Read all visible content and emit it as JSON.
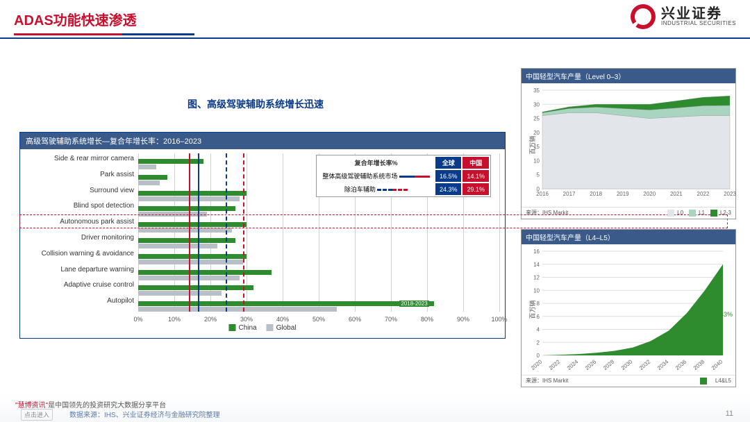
{
  "header": {
    "title": "ADAS功能快速渗透"
  },
  "logo": {
    "cn": "兴业证券",
    "en": "INDUSTRIAL SECURITIES"
  },
  "subtitle": "图、高级驾驶辅助系统增长迅速",
  "main_chart": {
    "title": "高级驾驶辅助系统增长—复合年增长率：2016–2023",
    "type": "horizontal_grouped_bar",
    "categories": [
      "Side & rear mirror camera",
      "Park assist",
      "Surround view",
      "Blind spot detection",
      "Autonomous park assist",
      "Driver monitoring",
      "Collision warning & avoidance",
      "Lane departure warning",
      "Adaptive cruise control",
      "Autopilot"
    ],
    "china_values": [
      18,
      8,
      30,
      27,
      30,
      27,
      30,
      37,
      32,
      82
    ],
    "global_values": [
      5,
      6,
      28,
      19,
      26,
      22,
      29,
      28,
      23,
      55
    ],
    "colors": {
      "china": "#2e8b2e",
      "global": "#b8bfc6"
    },
    "xlim": [
      0,
      100
    ],
    "xtick_step": 10,
    "grid_color": "#d0d0d0",
    "ref_lines": [
      {
        "x": 16.5,
        "color": "#0a3a8a",
        "style": "solid"
      },
      {
        "x": 14.1,
        "color": "#c8102e",
        "style": "solid"
      },
      {
        "x": 24.3,
        "color": "#0a3a8a",
        "style": "dashed"
      },
      {
        "x": 29.1,
        "color": "#c8102e",
        "style": "dashed"
      }
    ],
    "autopilot_label": "2018-2023",
    "legend": {
      "china": "China",
      "global": "Global"
    },
    "highlight_row_index": 4
  },
  "cagr_table": {
    "header": "复合年增长率%",
    "col_global": "全球",
    "col_china": "中国",
    "rows": [
      {
        "label": "整体高级驾驶辅助系统市场",
        "swatch": "solid",
        "global": "16.5%",
        "china": "14.1%"
      },
      {
        "label": "除泊车辅助",
        "swatch": "dashed",
        "global": "24.3%",
        "china": "29.1%"
      }
    ]
  },
  "area_chart": {
    "title": "中国轻型汽车产量（Level 0–3）",
    "type": "stacked_area",
    "ylabel": "百万辆",
    "ylim": [
      0,
      35
    ],
    "ytick_step": 5,
    "x": [
      2016,
      2017,
      2018,
      2019,
      2020,
      2021,
      2022,
      2023
    ],
    "series": [
      {
        "name": "L0",
        "color": "#e2e6ea",
        "values": [
          26,
          27,
          27,
          26,
          25,
          25.5,
          26,
          26
        ]
      },
      {
        "name": "L1",
        "color": "#a8d4c0",
        "values": [
          1,
          1.5,
          2,
          2.5,
          3,
          3.2,
          3.5,
          3.6
        ]
      },
      {
        "name": "L2-3",
        "color": "#2e8b2e",
        "values": [
          0.3,
          0.6,
          1,
          1.5,
          2,
          2.5,
          3,
          3.4
        ]
      }
    ],
    "source": "来源：IHS Markit"
  },
  "growth_chart": {
    "title": "中国轻型汽车产量（L4–L5）",
    "type": "area",
    "ylabel": "百万辆",
    "ylim": [
      0,
      16
    ],
    "ytick_step": 2,
    "x": [
      2020,
      2022,
      2024,
      2026,
      2028,
      2030,
      2032,
      2034,
      2036,
      2038,
      2040
    ],
    "values": [
      0,
      0.1,
      0.2,
      0.4,
      0.7,
      1.2,
      2.2,
      3.8,
      6.5,
      10,
      14
    ],
    "color": "#2e8b2e",
    "annotation": "全球~43%",
    "legend": "L4&L5",
    "source": "来源：IHS Markit"
  },
  "footer": {
    "watermark_prefix": "\"慧博资讯\"",
    "watermark_rest": "是中国领先的投资研究大数据分享平台",
    "source": "数据来源：IHS、兴业证券经济与金融研究院整理",
    "sidebtn": "点击进入",
    "page": "11"
  }
}
